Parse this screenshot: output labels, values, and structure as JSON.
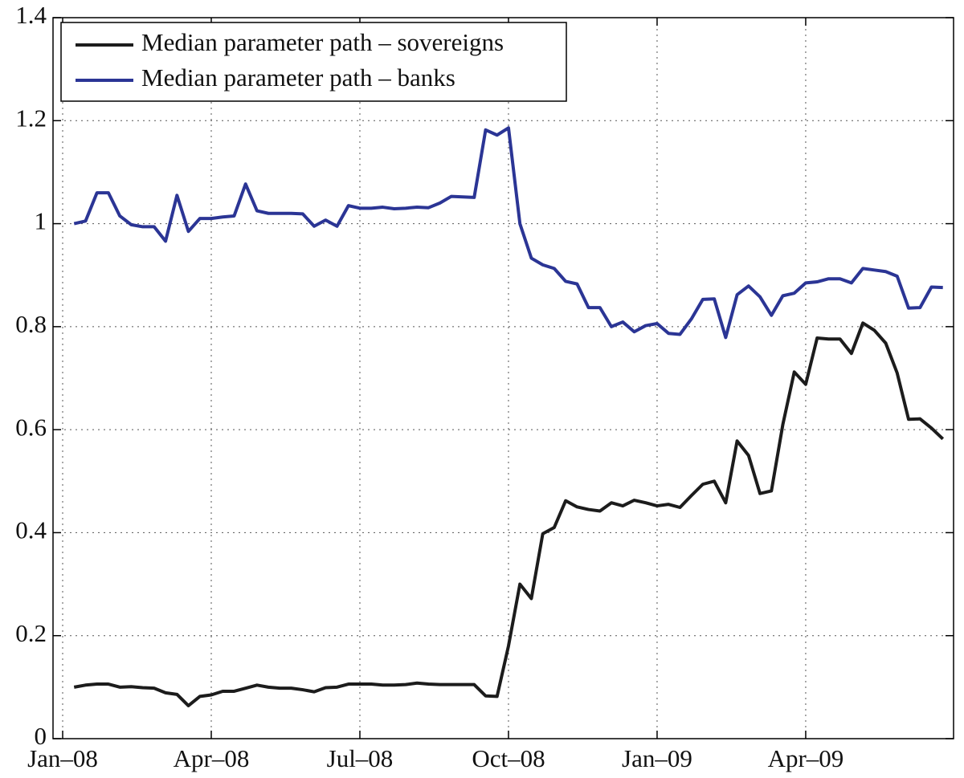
{
  "chart_data": {
    "type": "line",
    "categories": [
      "Jan–08",
      null,
      null,
      null,
      null,
      null,
      null,
      null,
      null,
      null,
      null,
      null,
      null,
      "Apr–08",
      null,
      null,
      null,
      null,
      null,
      null,
      null,
      null,
      null,
      null,
      null,
      null,
      "Jul–08",
      null,
      null,
      null,
      null,
      null,
      null,
      null,
      null,
      null,
      null,
      null,
      null,
      "Oct–08",
      null,
      null,
      null,
      null,
      null,
      null,
      null,
      null,
      null,
      null,
      null,
      null,
      "Jan–09",
      null,
      null,
      null,
      null,
      null,
      null,
      null,
      null,
      null,
      null,
      null,
      null,
      "Apr–09",
      null,
      null,
      null,
      null,
      null,
      null,
      null,
      null,
      null,
      null,
      null,
      null
    ],
    "series": [
      {
        "name": "Median parameter path – sovereigns",
        "color": "#1c1c1c",
        "values": [
          null,
          0.1,
          0.104,
          0.106,
          0.106,
          0.1,
          0.101,
          0.099,
          0.098,
          0.089,
          0.086,
          0.064,
          0.082,
          0.085,
          0.092,
          0.092,
          0.098,
          0.104,
          0.1,
          0.098,
          0.098,
          0.095,
          0.091,
          0.099,
          0.1,
          0.106,
          0.106,
          0.106,
          0.104,
          0.104,
          0.105,
          0.108,
          0.106,
          0.105,
          0.105,
          0.105,
          0.105,
          0.083,
          0.082,
          0.18,
          0.3,
          0.272,
          0.398,
          0.41,
          0.462,
          0.45,
          0.445,
          0.442,
          0.458,
          0.452,
          0.463,
          0.458,
          0.452,
          0.455,
          0.449,
          0.472,
          0.494,
          0.5,
          0.458,
          0.578,
          0.55,
          0.476,
          0.481,
          0.61,
          0.712,
          0.688,
          0.778,
          0.776,
          0.776,
          0.748,
          0.807,
          0.793,
          0.768,
          0.71,
          0.62,
          0.621,
          0.603,
          0.582
        ]
      },
      {
        "name": "Median parameter path – banks",
        "color": "#2b3595",
        "values": [
          null,
          1.0,
          1.005,
          1.06,
          1.06,
          1.015,
          0.998,
          0.994,
          0.994,
          0.966,
          1.055,
          0.985,
          1.01,
          1.01,
          1.013,
          1.015,
          1.077,
          1.025,
          1.02,
          1.02,
          1.02,
          1.019,
          0.995,
          1.007,
          0.995,
          1.035,
          1.03,
          1.03,
          1.032,
          1.029,
          1.03,
          1.032,
          1.031,
          1.04,
          1.053,
          1.052,
          1.051,
          1.182,
          1.172,
          1.186,
          1.0,
          0.933,
          0.92,
          0.913,
          0.888,
          0.883,
          0.837,
          0.837,
          0.8,
          0.809,
          0.79,
          0.802,
          0.806,
          0.787,
          0.785,
          0.815,
          0.853,
          0.854,
          0.779,
          0.862,
          0.879,
          0.858,
          0.822,
          0.86,
          0.865,
          0.885,
          0.887,
          0.893,
          0.893,
          0.885,
          0.913,
          0.91,
          0.907,
          0.898,
          0.836,
          0.837,
          0.877,
          0.876
        ]
      }
    ],
    "ylim": [
      0,
      1.4
    ],
    "yticks": [
      0,
      0.2,
      0.4,
      0.6,
      0.8,
      1,
      1.2,
      1.4
    ],
    "grid": true,
    "legend": "upper left"
  }
}
